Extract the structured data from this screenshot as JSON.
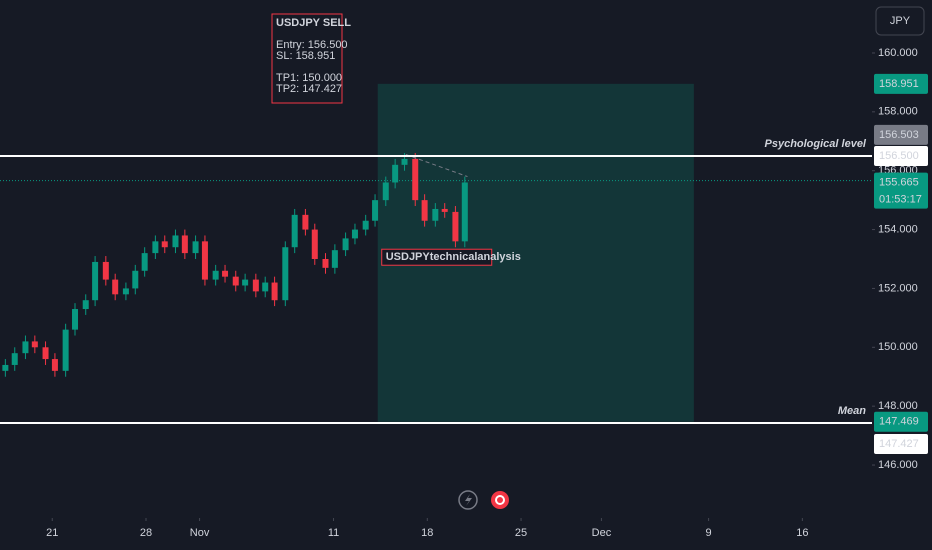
{
  "chart_data": {
    "type": "candlestick",
    "currency": "JPY",
    "up_color": "#089981",
    "down_color": "#f23645",
    "grid": false,
    "x": [
      -3.5,
      -2.8,
      -2.0,
      -1.3,
      -0.5,
      0.2,
      1.0,
      1.7,
      2.5,
      3.2,
      4.0,
      4.7,
      5.5,
      6.2,
      6.9,
      7.7,
      8.4,
      9.2,
      9.9,
      10.7,
      11.4,
      12.2,
      12.9,
      13.7,
      14.4,
      15.2,
      15.9,
      16.6,
      17.4,
      18.1,
      18.9,
      19.6,
      20.4,
      21.1,
      21.9,
      22.6,
      23.4,
      24.1,
      24.9,
      25.6,
      26.3,
      27.1,
      27.8,
      28.6,
      29.3,
      30.1,
      30.8
    ],
    "open": [
      149.2,
      149.4,
      149.8,
      150.2,
      150.0,
      149.6,
      149.2,
      150.6,
      151.3,
      151.6,
      152.9,
      152.3,
      151.8,
      152.0,
      152.6,
      153.2,
      153.6,
      153.4,
      153.8,
      153.2,
      153.6,
      152.3,
      152.6,
      152.4,
      152.1,
      152.3,
      151.9,
      152.2,
      151.6,
      153.4,
      154.5,
      154.0,
      153.0,
      152.7,
      153.3,
      153.7,
      154.0,
      154.3,
      155.0,
      155.6,
      156.2,
      156.4,
      155.0,
      154.3,
      154.7,
      154.6,
      153.6
    ],
    "high": [
      149.6,
      150.0,
      150.4,
      150.4,
      150.2,
      149.8,
      150.8,
      151.5,
      151.8,
      153.1,
      153.1,
      152.5,
      152.2,
      152.8,
      153.4,
      153.8,
      153.8,
      154.0,
      154.0,
      153.8,
      153.8,
      152.8,
      152.8,
      152.6,
      152.5,
      152.5,
      152.4,
      152.4,
      153.6,
      154.7,
      154.7,
      154.2,
      153.2,
      153.5,
      153.9,
      154.2,
      154.5,
      155.2,
      155.8,
      156.4,
      156.6,
      156.6,
      155.2,
      154.9,
      154.9,
      154.8,
      155.8
    ],
    "low": [
      149.0,
      149.2,
      149.6,
      149.8,
      149.4,
      149.0,
      149.0,
      150.4,
      151.1,
      151.4,
      152.1,
      151.6,
      151.6,
      151.8,
      152.4,
      153.0,
      153.2,
      153.2,
      153.0,
      153.0,
      152.1,
      152.1,
      152.2,
      151.9,
      151.9,
      151.7,
      151.7,
      151.4,
      151.4,
      153.2,
      153.8,
      152.8,
      152.5,
      152.5,
      153.1,
      153.5,
      153.8,
      154.1,
      154.8,
      155.4,
      156.0,
      154.8,
      154.1,
      154.1,
      154.4,
      153.4,
      153.4
    ],
    "close": [
      149.4,
      149.8,
      150.2,
      150.0,
      149.6,
      149.2,
      150.6,
      151.3,
      151.6,
      152.9,
      152.3,
      151.8,
      152.0,
      152.6,
      153.2,
      153.6,
      153.4,
      153.8,
      153.2,
      153.6,
      152.3,
      152.6,
      152.4,
      152.1,
      152.3,
      151.9,
      152.2,
      151.6,
      153.4,
      154.5,
      154.0,
      153.0,
      152.7,
      153.3,
      153.7,
      154.0,
      154.3,
      155.0,
      155.6,
      156.2,
      156.4,
      155.0,
      154.3,
      154.7,
      154.6,
      153.6,
      155.6
    ],
    "xlim": [
      -3.9,
      61.2
    ],
    "xticks": [
      {
        "value": 0,
        "label": "21"
      },
      {
        "value": 7,
        "label": "28"
      },
      {
        "value": 11,
        "label": "Nov"
      },
      {
        "value": 21,
        "label": "11"
      },
      {
        "value": 28,
        "label": "18"
      },
      {
        "value": 35,
        "label": "25"
      },
      {
        "value": 41,
        "label": "Dec"
      },
      {
        "value": 49,
        "label": "9"
      },
      {
        "value": 56,
        "label": "16"
      }
    ],
    "ylim": [
      144.2,
      161.8
    ],
    "yticks": [
      {
        "value": 146,
        "label": "146.000"
      },
      {
        "value": 148,
        "label": "148.000"
      },
      {
        "value": 150,
        "label": "150.000"
      },
      {
        "value": 152,
        "label": "152.000"
      },
      {
        "value": 154,
        "label": "154.000"
      },
      {
        "value": 156,
        "label": "156.000"
      },
      {
        "value": 158,
        "label": "158.000"
      },
      {
        "value": 160,
        "label": "160.000"
      }
    ],
    "levels": [
      {
        "name": "Psychological level",
        "value": 156.5,
        "value_label": "156.500"
      },
      {
        "name": "Mean",
        "value": 147.427,
        "value_label": "147.427"
      }
    ],
    "current_price": {
      "value": 155.665,
      "label": "155.665",
      "countdown": "01:53:17"
    },
    "position": {
      "x": [
        24.3,
        47.9
      ],
      "stop": 158.951,
      "stop_label": "158.951",
      "target": 147.469,
      "target_label": "147.469",
      "entry": 156.503,
      "entry_label": "156.503"
    },
    "trend_line": {
      "x": [
        26.4,
        31.0
      ],
      "y": [
        156.55,
        155.8
      ]
    },
    "tag": "USDJPYtechnicalanalysis",
    "note": {
      "title": "USDJPY SELL",
      "groups": [
        [
          "Entry: 156.500",
          "SL: 158.951"
        ],
        [
          "TP1: 150.000",
          "TP2: 147.427"
        ]
      ]
    }
  }
}
